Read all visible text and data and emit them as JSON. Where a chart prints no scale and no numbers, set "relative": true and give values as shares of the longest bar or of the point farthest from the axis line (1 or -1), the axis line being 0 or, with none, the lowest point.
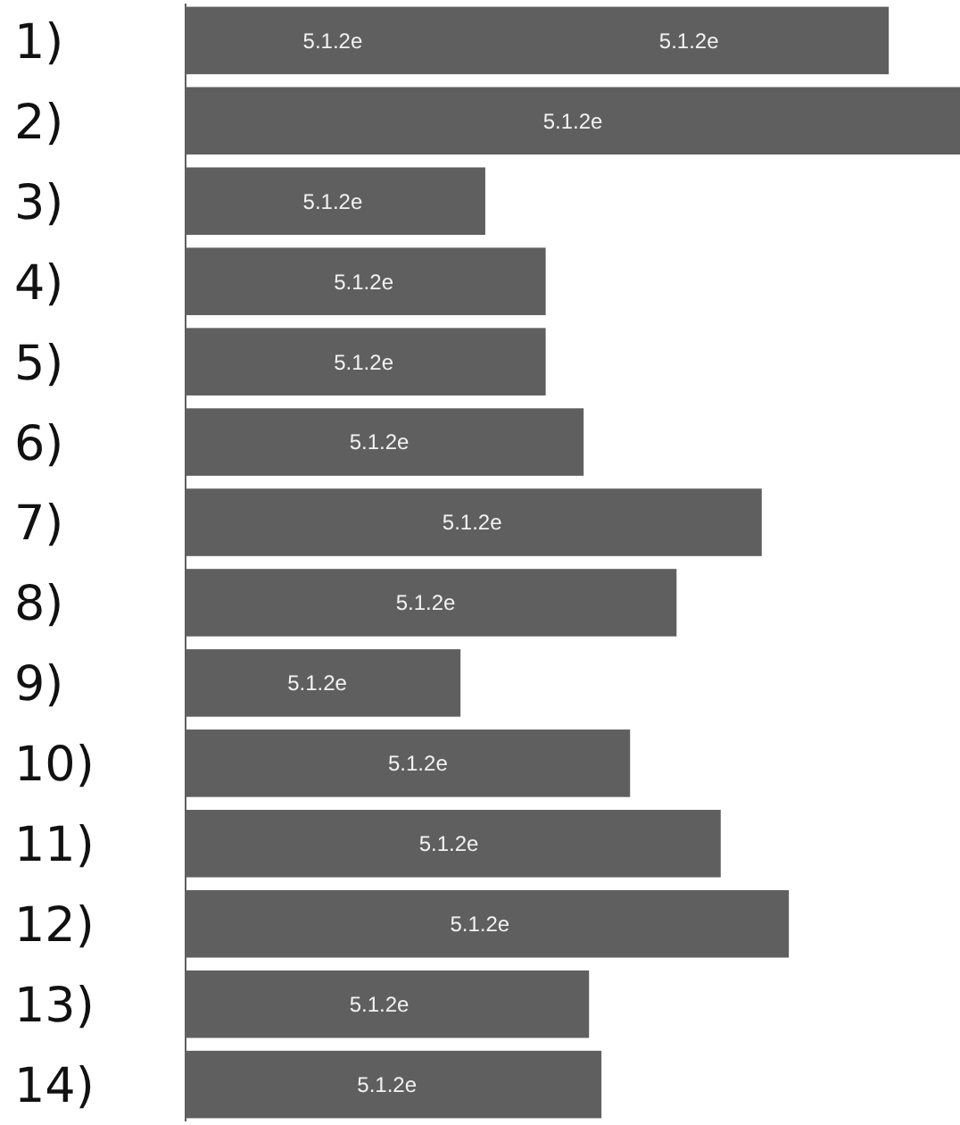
{
  "chart_data": {
    "type": "bar",
    "orientation": "horizontal",
    "relative": true,
    "color": "#5f5f5f",
    "categories": [
      "1)",
      "2)",
      "3)",
      "4)",
      "5)",
      "6)",
      "7)",
      "8)",
      "9)",
      "10)",
      "11)",
      "12)",
      "13)",
      "14)"
    ],
    "values": [
      0.908,
      1,
      0.387,
      0.465,
      0.465,
      0.514,
      0.744,
      0.634,
      0.355,
      0.574,
      0.691,
      0.779,
      0.521,
      0.537
    ],
    "annotations": [
      {
        "text": "5.1.2e",
        "x": 0.19,
        "y": "1)"
      },
      {
        "text": "5.1.2e",
        "x": 0.65,
        "y": "1)"
      },
      {
        "text": "5.1.2e",
        "x": 0.5,
        "y": "2)"
      },
      {
        "text": "5.1.2e",
        "x": 0.19,
        "y": "3)"
      },
      {
        "text": "5.1.2e",
        "x": 0.23,
        "y": "4)"
      },
      {
        "text": "5.1.2e",
        "x": 0.23,
        "y": "5)"
      },
      {
        "text": "5.1.2e",
        "x": 0.25,
        "y": "6)"
      },
      {
        "text": "5.1.2e",
        "x": 0.37,
        "y": "7)"
      },
      {
        "text": "5.1.2e",
        "x": 0.31,
        "y": "8)"
      },
      {
        "text": "5.1.2e",
        "x": 0.17,
        "y": "9)"
      },
      {
        "text": "5.1.2e",
        "x": 0.3,
        "y": "10)"
      },
      {
        "text": "5.1.2e",
        "x": 0.34,
        "y": "11)"
      },
      {
        "text": "5.1.2e",
        "x": 0.38,
        "y": "12)"
      },
      {
        "text": "5.1.2e",
        "x": 0.25,
        "y": "13)"
      },
      {
        "text": "5.1.2e",
        "x": 0.26,
        "y": "14)"
      }
    ]
  }
}
